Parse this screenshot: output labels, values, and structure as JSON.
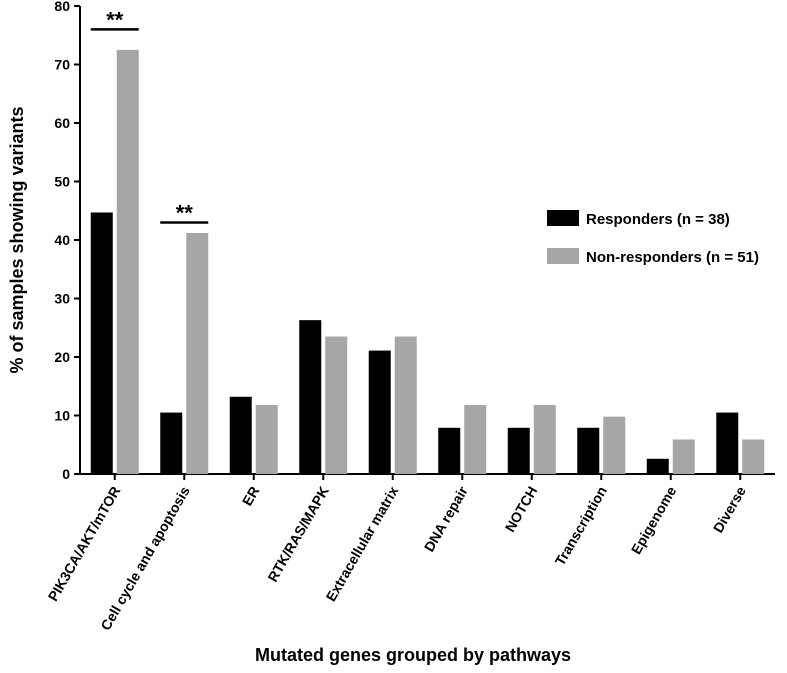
{
  "chart_data": {
    "type": "bar",
    "title": "",
    "xlabel": "Mutated genes grouped by pathways",
    "ylabel": "% of samples showing variants",
    "ylim": [
      0,
      80
    ],
    "yticks": [
      0,
      10,
      20,
      30,
      40,
      50,
      60,
      70,
      80
    ],
    "categories": [
      "PIK3CA/AKT/mTOR",
      "Cell cycle and apoptosis",
      "ER",
      "RTK/RAS/MAPK",
      "Extracellular matrix",
      "DNA repair",
      "NOTCH",
      "Transcription",
      "Epigenome",
      "Diverse"
    ],
    "series": [
      {
        "name": "Responders (n = 38)",
        "color": "#000000",
        "values": [
          44.7,
          10.5,
          13.2,
          26.3,
          21.1,
          7.9,
          7.9,
          7.9,
          2.6,
          10.5
        ]
      },
      {
        "name": "Non-responders (n = 51)",
        "color": "#a6a6a6",
        "values": [
          72.5,
          41.2,
          11.8,
          23.5,
          23.5,
          11.8,
          11.8,
          9.8,
          5.9,
          5.9
        ]
      }
    ],
    "significance": [
      {
        "category": "PIK3CA/AKT/mTOR",
        "label": "**",
        "y": 76
      },
      {
        "category": "Cell cycle and apoptosis",
        "label": "**",
        "y": 43
      }
    ],
    "legend_position": "right",
    "grid": false
  }
}
